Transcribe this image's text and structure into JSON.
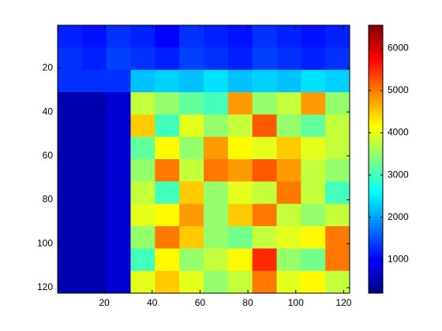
{
  "chart_data": {
    "type": "heatmap",
    "colormap": "jet",
    "xlim": [
      0.5,
      122.5
    ],
    "ylim": [
      0.5,
      122.5
    ],
    "y_reversed": true,
    "xticks": [
      20,
      40,
      60,
      80,
      100,
      120
    ],
    "yticks": [
      20,
      40,
      60,
      80,
      100,
      120
    ],
    "clim": [
      200,
      6550
    ],
    "cticks": [
      1000,
      2000,
      3000,
      4000,
      5000,
      6000
    ],
    "z": [
      [
        1200,
        1100,
        1300,
        1200,
        1000,
        1300,
        1200,
        1100,
        1300,
        1200,
        1100,
        1200
      ],
      [
        1300,
        1200,
        1400,
        1300,
        1200,
        1400,
        1300,
        1200,
        1400,
        1300,
        1200,
        1300
      ],
      [
        1300,
        1300,
        1300,
        2200,
        2300,
        2200,
        2400,
        2200,
        2300,
        2200,
        2400,
        2300
      ],
      [
        500,
        500,
        700,
        3800,
        3500,
        3200,
        3000,
        4800,
        3500,
        3800,
        4800,
        3500
      ],
      [
        500,
        500,
        700,
        4500,
        3000,
        4000,
        3500,
        3800,
        5200,
        3500,
        3200,
        3800
      ],
      [
        500,
        500,
        700,
        3200,
        4200,
        3500,
        4800,
        4200,
        4000,
        4500,
        4000,
        3800
      ],
      [
        500,
        500,
        700,
        3500,
        5000,
        3800,
        5000,
        4800,
        5200,
        4800,
        3800,
        3500
      ],
      [
        500,
        500,
        700,
        3800,
        3000,
        4500,
        3500,
        4000,
        3800,
        5000,
        3800,
        3000
      ],
      [
        500,
        500,
        700,
        4000,
        4200,
        4800,
        3500,
        4500,
        5000,
        3800,
        3500,
        3800
      ],
      [
        500,
        500,
        700,
        3500,
        5000,
        4500,
        3500,
        3300,
        3800,
        4000,
        4200,
        5000
      ],
      [
        500,
        500,
        700,
        3000,
        4200,
        3500,
        3800,
        4200,
        5500,
        3500,
        3300,
        5000
      ],
      [
        500,
        500,
        700,
        4000,
        4500,
        4000,
        3500,
        3800,
        5000,
        4000,
        4200,
        3800
      ]
    ]
  }
}
